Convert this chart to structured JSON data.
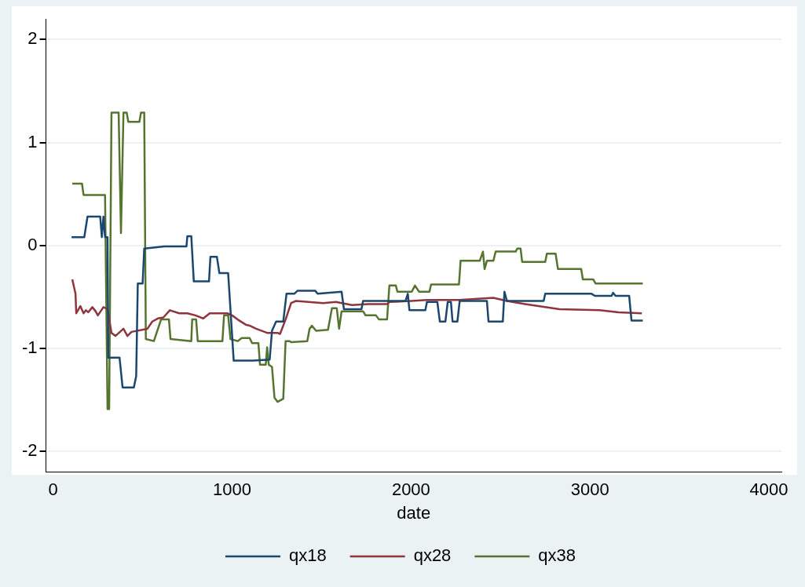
{
  "chart_data": {
    "type": "line",
    "xlabel": "date",
    "xlim": [
      -40,
      4070
    ],
    "xticks": [
      0,
      1000,
      2000,
      3000,
      4000
    ],
    "ylim": [
      -2.2,
      2.2
    ],
    "yticks": [
      -2,
      -1,
      0,
      1,
      2
    ],
    "grid": "y",
    "legend": "bottom",
    "marker": "none",
    "line_style": "solid",
    "series": [
      {
        "name": "qx18",
        "color": "#1a476f",
        "x": [
          103,
          174,
          192,
          263,
          272,
          281,
          290,
          304,
          308,
          371,
          388,
          451,
          464,
          473,
          500,
          509,
          621,
          745,
          750,
          772,
          786,
          871,
          879,
          915,
          929,
          978,
          1009,
          1116,
          1210,
          1223,
          1246,
          1286,
          1304,
          1348,
          1366,
          1464,
          1478,
          1612,
          1625,
          1723,
          1732,
          1969,
          1982,
          1991,
          2080,
          2089,
          2147,
          2161,
          2192,
          2205,
          2223,
          2232,
          2259,
          2272,
          2424,
          2433,
          2513,
          2522,
          2536,
          2741,
          2750,
          3009,
          3027,
          3121,
          3129,
          3143,
          3219,
          3232,
          3295
        ],
        "values": [
          0.08,
          0.08,
          0.28,
          0.28,
          0.08,
          0.28,
          0.08,
          0.08,
          -1.09,
          -1.09,
          -1.38,
          -1.38,
          -1.27,
          -0.37,
          -0.37,
          -0.03,
          -0.01,
          -0.01,
          0.09,
          0.09,
          -0.35,
          -0.35,
          -0.11,
          -0.11,
          -0.27,
          -0.27,
          -1.12,
          -1.12,
          -1.11,
          -0.83,
          -0.74,
          -0.74,
          -0.47,
          -0.47,
          -0.44,
          -0.44,
          -0.47,
          -0.45,
          -0.62,
          -0.62,
          -0.54,
          -0.54,
          -0.47,
          -0.63,
          -0.63,
          -0.55,
          -0.55,
          -0.74,
          -0.74,
          -0.55,
          -0.55,
          -0.74,
          -0.74,
          -0.54,
          -0.54,
          -0.74,
          -0.74,
          -0.45,
          -0.54,
          -0.54,
          -0.47,
          -0.47,
          -0.49,
          -0.49,
          -0.46,
          -0.49,
          -0.49,
          -0.73,
          -0.73
        ]
      },
      {
        "name": "qx28",
        "color": "#90353b",
        "x": [
          107,
          125,
          129,
          152,
          170,
          183,
          196,
          219,
          237,
          250,
          281,
          304,
          326,
          348,
          393,
          415,
          438,
          527,
          554,
          585,
          616,
          652,
          705,
          750,
          795,
          839,
          875,
          973,
          1000,
          1031,
          1076,
          1098,
          1134,
          1196,
          1254,
          1268,
          1299,
          1330,
          1357,
          1509,
          1580,
          1670,
          1759,
          1866,
          1879,
          2000,
          2089,
          2268,
          2460,
          2536,
          2638,
          2830,
          3054,
          3161,
          3290
        ],
        "values": [
          -0.33,
          -0.47,
          -0.66,
          -0.59,
          -0.66,
          -0.63,
          -0.65,
          -0.6,
          -0.64,
          -0.68,
          -0.6,
          -0.62,
          -0.85,
          -0.88,
          -0.81,
          -0.88,
          -0.84,
          -0.81,
          -0.74,
          -0.71,
          -0.7,
          -0.63,
          -0.66,
          -0.66,
          -0.68,
          -0.71,
          -0.66,
          -0.66,
          -0.68,
          -0.72,
          -0.77,
          -0.78,
          -0.81,
          -0.85,
          -0.85,
          -0.86,
          -0.72,
          -0.56,
          -0.54,
          -0.56,
          -0.55,
          -0.58,
          -0.57,
          -0.57,
          -0.55,
          -0.54,
          -0.53,
          -0.53,
          -0.51,
          -0.54,
          -0.57,
          -0.62,
          -0.63,
          -0.65,
          -0.66
        ]
      },
      {
        "name": "qx38",
        "color": "#55752f",
        "x": [
          107,
          161,
          170,
          290,
          304,
          313,
          326,
          366,
          379,
          393,
          411,
          420,
          482,
          491,
          509,
          518,
          563,
          603,
          647,
          656,
          772,
          777,
          799,
          808,
          946,
          955,
          978,
          991,
          1031,
          1054,
          1098,
          1112,
          1147,
          1156,
          1188,
          1196,
          1205,
          1223,
          1237,
          1254,
          1286,
          1299,
          1321,
          1330,
          1420,
          1433,
          1446,
          1469,
          1536,
          1558,
          1585,
          1598,
          1612,
          1732,
          1746,
          1804,
          1821,
          1866,
          1879,
          1915,
          1924,
          2004,
          2022,
          2045,
          2103,
          2112,
          2268,
          2277,
          2384,
          2402,
          2411,
          2424,
          2460,
          2473,
          2585,
          2594,
          2612,
          2621,
          2750,
          2759,
          2808,
          2821,
          2951,
          2960,
          3018,
          3031,
          3295
        ],
        "values": [
          0.6,
          0.6,
          0.49,
          0.49,
          -1.59,
          -1.59,
          1.29,
          1.29,
          0.12,
          1.29,
          1.29,
          1.2,
          1.2,
          1.29,
          1.29,
          -0.91,
          -0.93,
          -0.72,
          -0.72,
          -0.91,
          -0.93,
          -0.72,
          -0.72,
          -0.93,
          -0.93,
          -0.68,
          -0.68,
          -0.91,
          -0.93,
          -0.9,
          -0.9,
          -0.95,
          -0.95,
          -1.16,
          -1.16,
          -0.99,
          -1.16,
          -1.18,
          -1.48,
          -1.52,
          -1.49,
          -0.93,
          -0.93,
          -0.94,
          -0.93,
          -0.81,
          -0.78,
          -0.83,
          -0.82,
          -0.61,
          -0.61,
          -0.81,
          -0.64,
          -0.64,
          -0.68,
          -0.68,
          -0.72,
          -0.72,
          -0.39,
          -0.39,
          -0.45,
          -0.45,
          -0.39,
          -0.45,
          -0.45,
          -0.38,
          -0.38,
          -0.15,
          -0.15,
          -0.06,
          -0.23,
          -0.15,
          -0.15,
          -0.06,
          -0.06,
          -0.03,
          -0.03,
          -0.16,
          -0.16,
          -0.08,
          -0.08,
          -0.23,
          -0.23,
          -0.33,
          -0.33,
          -0.37,
          -0.37
        ]
      }
    ]
  }
}
